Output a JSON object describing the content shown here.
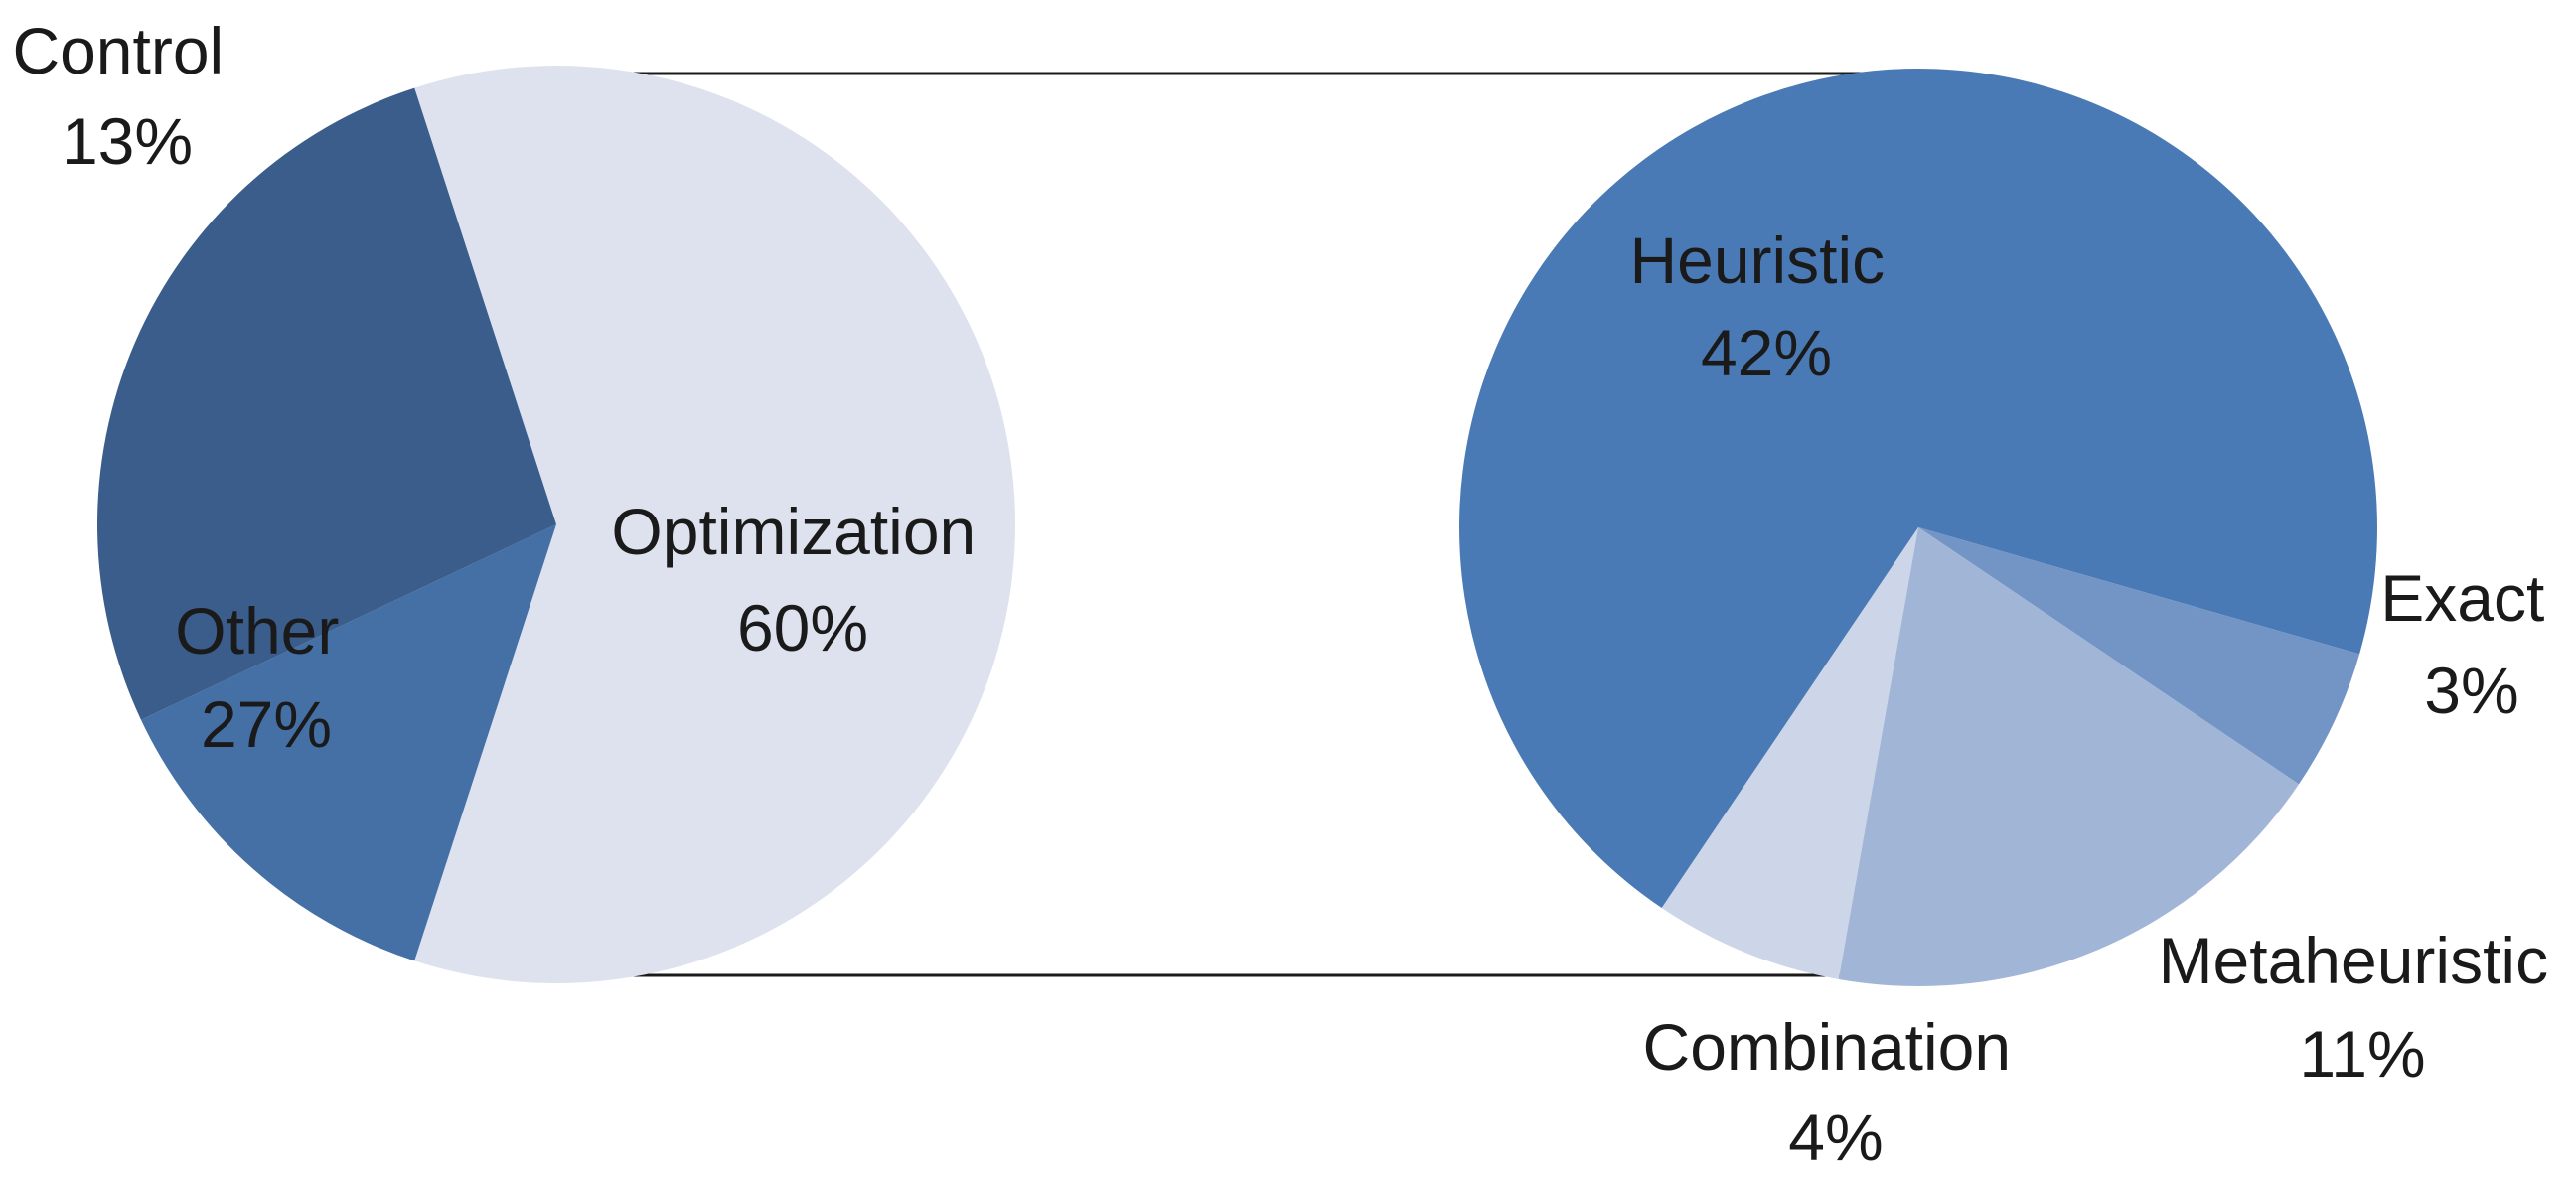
{
  "chart_data": [
    {
      "type": "pie",
      "slices": [
        {
          "label": "Optimization",
          "pct_text": "60%",
          "value": 60,
          "color": "#dde2ee"
        },
        {
          "label": "Control",
          "pct_text": "13%",
          "value": 13,
          "color": "#4470a6"
        },
        {
          "label": "Other",
          "pct_text": "27%",
          "value": 27,
          "color": "#3a5d8c"
        }
      ]
    },
    {
      "type": "pie",
      "slices": [
        {
          "label": "Heuristic",
          "pct_text": "42%",
          "value": 42,
          "color": "#4a7ab5"
        },
        {
          "label": "Exact",
          "pct_text": "3%",
          "value": 3,
          "color": "#7295c6"
        },
        {
          "label": "Metaheuristic",
          "pct_text": "11%",
          "value": 11,
          "color": "#a1b5d6"
        },
        {
          "label": "Combination",
          "pct_text": "4%",
          "value": 4,
          "color": "#cdd6e8"
        }
      ]
    }
  ],
  "connector_color": "#1a1a1a"
}
